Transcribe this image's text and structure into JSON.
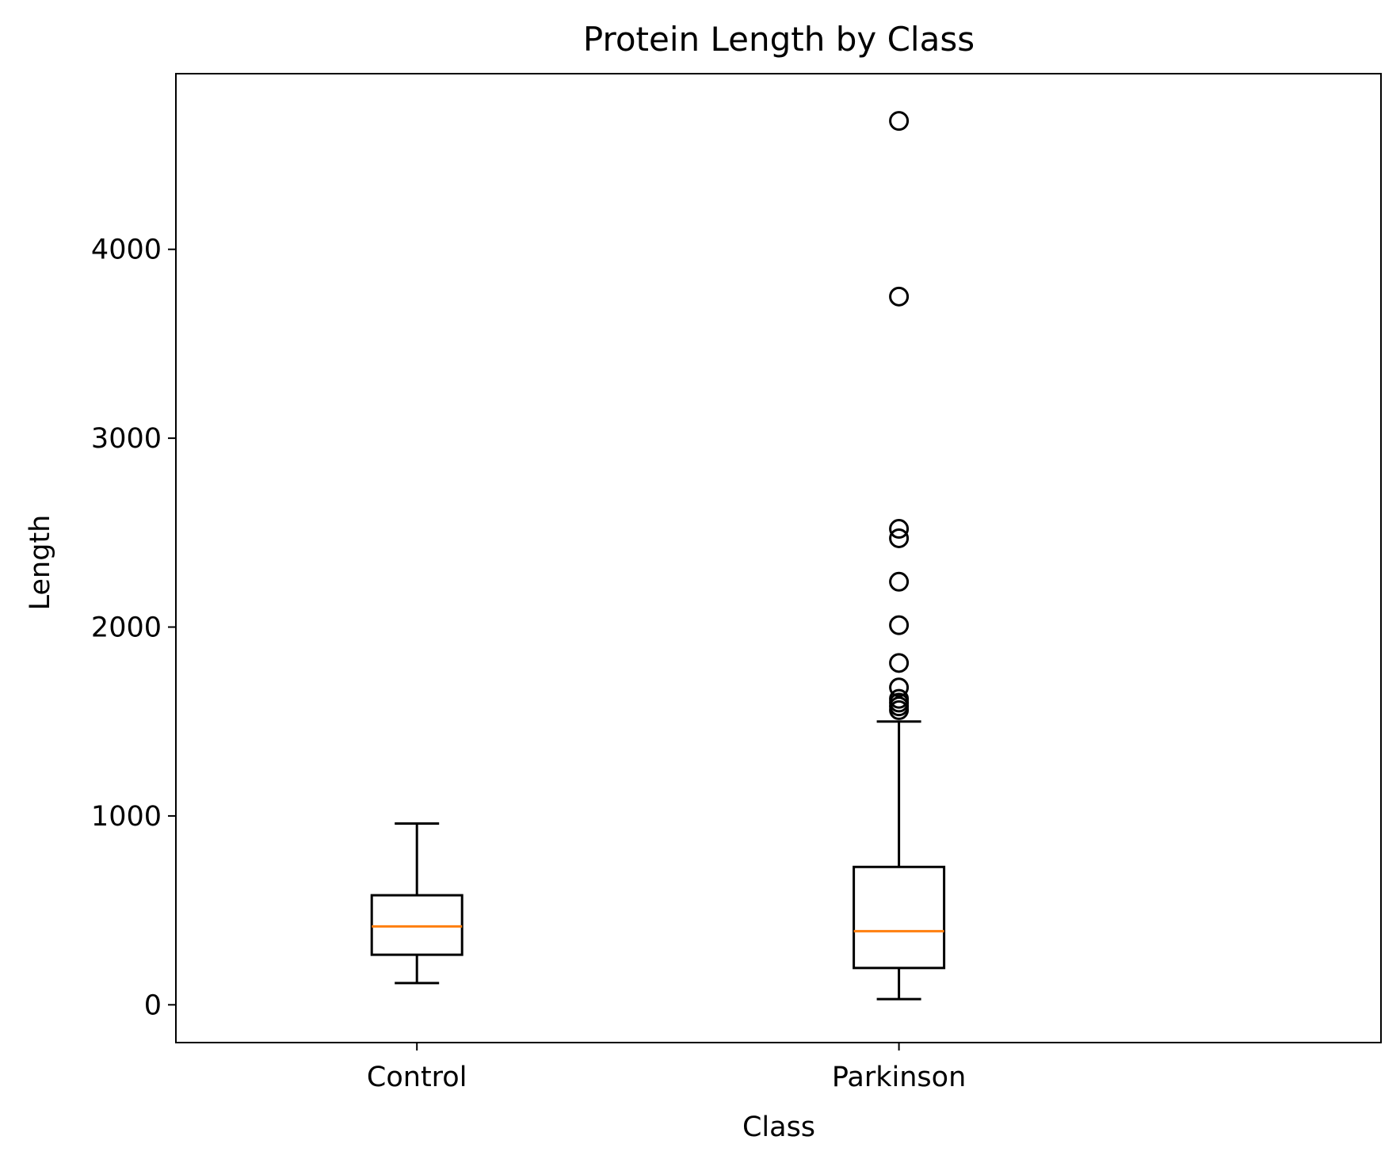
{
  "chart_data": {
    "type": "box",
    "title": "Protein Length by Class",
    "xlabel": "Class",
    "ylabel": "Length",
    "categories": [
      "Control",
      "Parkinson"
    ],
    "ylim": [
      -200,
      4930
    ],
    "yticks": [
      0,
      1000,
      2000,
      3000,
      4000
    ],
    "ytick_labels": [
      "0",
      "1000",
      "2000",
      "3000",
      "4000"
    ],
    "grid": false,
    "colors": {
      "box": "#000000",
      "median": "#ff7f0e",
      "flier": "#000000"
    },
    "boxes": [
      {
        "category": "Control",
        "whisker_low": 115,
        "q1": 265,
        "median": 415,
        "q3": 580,
        "whisker_high": 960,
        "outliers": []
      },
      {
        "category": "Parkinson",
        "whisker_low": 30,
        "q1": 195,
        "median": 390,
        "q3": 730,
        "whisker_high": 1500,
        "outliers": [
          1560,
          1580,
          1600,
          1620,
          1680,
          1810,
          2010,
          2240,
          2470,
          2520,
          3750,
          4680
        ]
      }
    ]
  }
}
